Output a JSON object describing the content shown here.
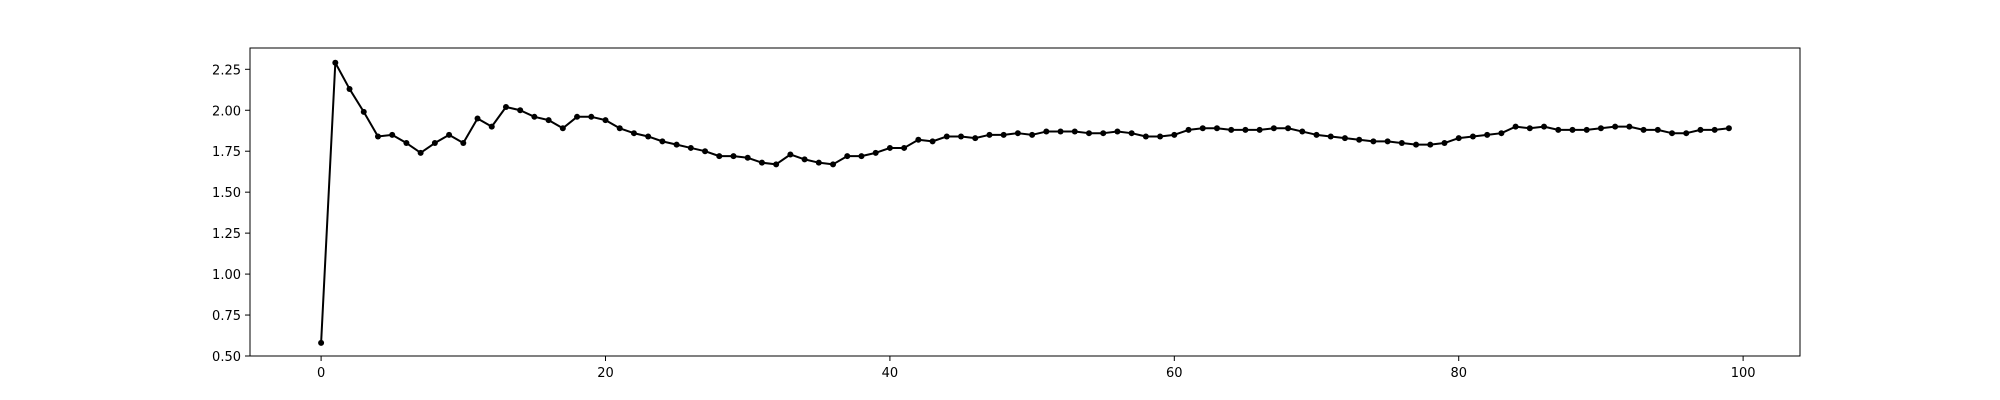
{
  "chart_data": {
    "type": "line",
    "title": "",
    "xlabel": "",
    "ylabel": "",
    "xlim": [
      -5,
      104
    ],
    "ylim": [
      0.5,
      2.38
    ],
    "x_ticks": [
      0,
      20,
      40,
      60,
      80,
      100
    ],
    "y_ticks": [
      0.5,
      0.75,
      1.0,
      1.25,
      1.5,
      1.75,
      2.0,
      2.25
    ],
    "x_tick_labels": [
      "0",
      "20",
      "40",
      "60",
      "80",
      "100"
    ],
    "y_tick_labels": [
      "0.50",
      "0.75",
      "1.00",
      "1.25",
      "1.50",
      "1.75",
      "2.00",
      "2.25"
    ],
    "grid": false,
    "legend": "none",
    "line_color": "#000000",
    "marker": "circle",
    "series": [
      {
        "x": [
          0,
          1,
          2,
          3,
          4,
          5,
          6,
          7,
          8,
          9,
          10,
          11,
          12,
          13,
          14,
          15,
          16,
          17,
          18,
          19,
          20,
          21,
          22,
          23,
          24,
          25,
          26,
          27,
          28,
          29,
          30,
          31,
          32,
          33,
          34,
          35,
          36,
          37,
          38,
          39,
          40,
          41,
          42,
          43,
          44,
          45,
          46,
          47,
          48,
          49,
          50,
          51,
          52,
          53,
          54,
          55,
          56,
          57,
          58,
          59,
          60,
          61,
          62,
          63,
          64,
          65,
          66,
          67,
          68,
          69,
          70,
          71,
          72,
          73,
          74,
          75,
          76,
          77,
          78,
          79,
          80,
          81,
          82,
          83,
          84,
          85,
          86,
          87,
          88,
          89,
          90,
          91,
          92,
          93,
          94,
          95,
          96,
          97,
          98,
          99
        ],
        "values": [
          0.58,
          2.29,
          2.13,
          1.99,
          1.84,
          1.85,
          1.8,
          1.74,
          1.8,
          1.85,
          1.8,
          1.95,
          1.9,
          2.02,
          2.0,
          1.96,
          1.94,
          1.89,
          1.96,
          1.96,
          1.94,
          1.89,
          1.86,
          1.84,
          1.81,
          1.79,
          1.77,
          1.75,
          1.72,
          1.72,
          1.71,
          1.68,
          1.67,
          1.73,
          1.7,
          1.68,
          1.67,
          1.72,
          1.72,
          1.74,
          1.77,
          1.77,
          1.82,
          1.81,
          1.84,
          1.84,
          1.83,
          1.85,
          1.85,
          1.86,
          1.85,
          1.87,
          1.87,
          1.87,
          1.86,
          1.86,
          1.87,
          1.86,
          1.84,
          1.84,
          1.85,
          1.88,
          1.89,
          1.89,
          1.88,
          1.88,
          1.88,
          1.89,
          1.89,
          1.87,
          1.85,
          1.84,
          1.83,
          1.82,
          1.81,
          1.81,
          1.8,
          1.79,
          1.79,
          1.8,
          1.83,
          1.84,
          1.85,
          1.86,
          1.9,
          1.89,
          1.9,
          1.88,
          1.88,
          1.88,
          1.89,
          1.9,
          1.9,
          1.88,
          1.88,
          1.86,
          1.86,
          1.88,
          1.88,
          1.89
        ]
      }
    ]
  }
}
